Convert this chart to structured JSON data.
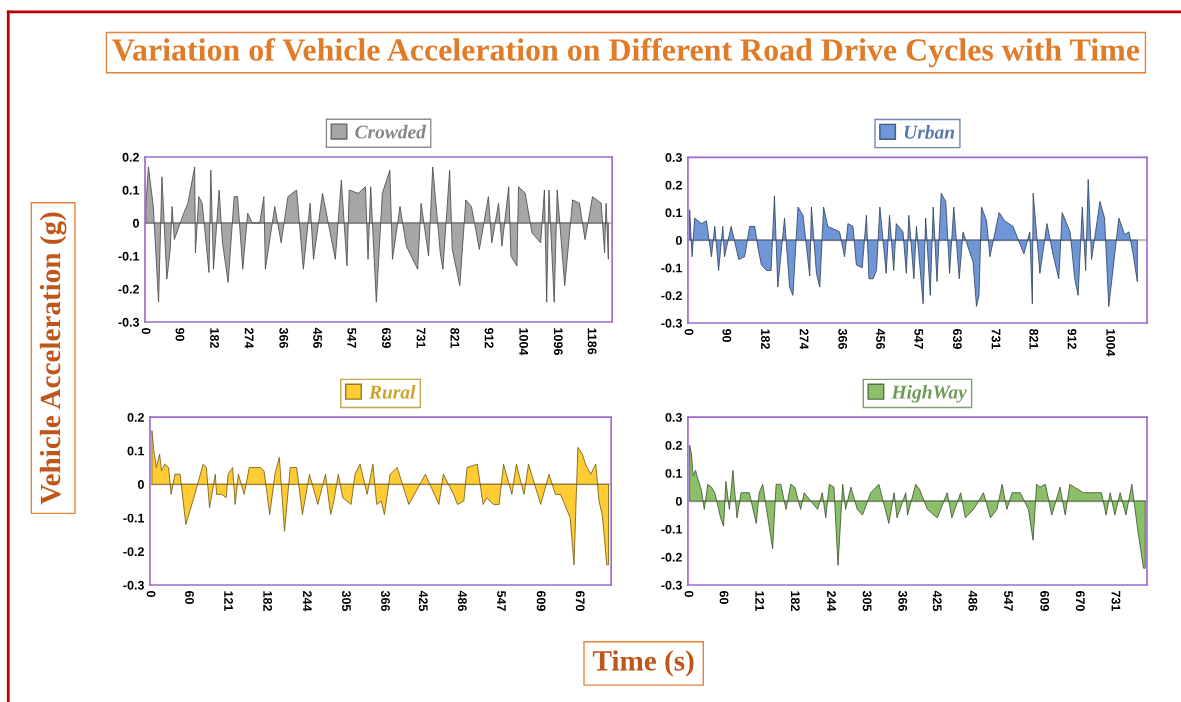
{
  "chart_data": [
    {
      "type": "area",
      "title": "Variation of Vehicle Acceleration on Different Road Drive Cycles with Time",
      "xlabel": "Time (s)",
      "ylabel": "Vehicle Acceleration (g)",
      "legend": "top",
      "xlim": [
        0,
        1242
      ],
      "xticks": [
        0,
        90,
        182,
        274,
        366,
        456,
        547,
        639,
        731,
        821,
        912,
        1004,
        1096,
        1186
      ],
      "ylim": [
        -0.3,
        0.2
      ],
      "yticks": [
        -0.3,
        -0.2,
        -0.1,
        0,
        0.1,
        0.2
      ],
      "series": [
        {
          "name": "Crowded",
          "color": "#a6a6a6",
          "x": [
            2,
            9,
            22,
            36,
            45,
            58,
            67,
            72,
            78,
            103,
            114,
            132,
            134,
            143,
            152,
            170,
            175,
            182,
            197,
            206,
            221,
            237,
            246,
            260,
            273,
            285,
            305,
            316,
            320,
            345,
            362,
            380,
            403,
            421,
            439,
            448,
            472,
            506,
            522,
            537,
            543,
            567,
            586,
            593,
            600,
            615,
            631,
            651,
            658,
            678,
            695,
            725,
            734,
            754,
            765,
            785,
            792,
            810,
            817,
            837,
            853,
            868,
            889,
            913,
            922,
            940,
            949,
            967,
            973,
            989,
            993,
            1011,
            1029,
            1052,
            1062,
            1068,
            1074,
            1088,
            1096,
            1116,
            1137,
            1155,
            1170,
            1190,
            1213,
            1222,
            1226,
            1232
          ],
          "values": [
            0.05,
            0.17,
            0.05,
            -0.24,
            0.14,
            -0.17,
            -0.08,
            0.05,
            -0.05,
            0.03,
            0.06,
            0.17,
            -0.09,
            0.08,
            0.06,
            -0.15,
            0.16,
            -0.14,
            0.1,
            -0.06,
            -0.18,
            0.08,
            0.08,
            -0.14,
            0.03,
            0,
            0,
            0.08,
            -0.14,
            0.05,
            -0.06,
            0.08,
            0.1,
            -0.14,
            0.06,
            -0.11,
            0.09,
            -0.11,
            0.13,
            -0.13,
            0.1,
            0.09,
            0.11,
            -0.11,
            0.11,
            -0.24,
            0.09,
            0.16,
            -0.11,
            0.05,
            -0.07,
            -0.14,
            0.06,
            -0.1,
            0.17,
            -0.09,
            -0.14,
            0.16,
            -0.08,
            -0.19,
            0.07,
            0.05,
            -0.08,
            0.08,
            -0.06,
            0.06,
            -0.07,
            0.11,
            -0.1,
            -0.13,
            0.11,
            0.09,
            -0.03,
            -0.06,
            0.1,
            -0.24,
            0.1,
            -0.24,
            0.1,
            -0.19,
            0.07,
            0.06,
            -0.05,
            0.08,
            0.06,
            -0.09,
            0.06,
            -0.11
          ]
        }
      ]
    },
    {
      "type": "area",
      "legend": "top",
      "xlim": [
        0,
        1093
      ],
      "xticks": [
        0,
        90,
        182,
        274,
        366,
        456,
        547,
        639,
        731,
        821,
        912,
        1004
      ],
      "ylim": [
        -0.3,
        0.3
      ],
      "yticks": [
        -0.3,
        -0.2,
        -0.1,
        0,
        0.1,
        0.2,
        0.3
      ],
      "series": [
        {
          "name": "Urban",
          "color": "#6f96d6",
          "x": [
            4,
            10,
            16,
            32,
            44,
            56,
            64,
            73,
            83,
            87,
            103,
            121,
            135,
            147,
            159,
            167,
            175,
            187,
            198,
            206,
            214,
            230,
            242,
            250,
            262,
            274,
            290,
            294,
            306,
            314,
            323,
            333,
            361,
            373,
            381,
            393,
            401,
            415,
            425,
            431,
            441,
            449,
            457,
            472,
            480,
            490,
            496,
            512,
            520,
            526,
            538,
            544,
            560,
            566,
            577,
            584,
            593,
            603,
            614,
            623,
            633,
            646,
            655,
            679,
            687,
            693,
            699,
            711,
            719,
            741,
            754,
            774,
            800,
            814,
            820,
            822,
            838,
            855,
            869,
            883,
            891,
            910,
            921,
            929,
            939,
            947,
            953,
            961,
            981,
            992,
            1002,
            1026,
            1040,
            1050,
            1060,
            1070
          ],
          "values": [
            0.11,
            -0.06,
            0.08,
            0.06,
            0.07,
            -0.06,
            0.05,
            -0.11,
            0.05,
            -0.06,
            0.05,
            -0.07,
            -0.06,
            0.05,
            0.05,
            -0.03,
            -0.09,
            -0.11,
            -0.11,
            0.16,
            -0.17,
            0.08,
            -0.17,
            -0.2,
            0.12,
            0.09,
            -0.13,
            0.12,
            -0.12,
            -0.17,
            0.12,
            0.05,
            0.03,
            -0.06,
            0.06,
            0.05,
            -0.09,
            -0.1,
            0.09,
            -0.14,
            -0.14,
            -0.11,
            0.12,
            -0.12,
            0.09,
            -0.11,
            0.06,
            0.03,
            -0.12,
            0.09,
            -0.14,
            0.05,
            -0.23,
            0.08,
            -0.2,
            0.12,
            -0.15,
            0.17,
            0.14,
            -0.12,
            0.12,
            -0.14,
            0.03,
            -0.08,
            -0.24,
            -0.2,
            0.12,
            0.07,
            -0.06,
            0.1,
            0.07,
            0.05,
            -0.05,
            0.03,
            -0.23,
            0.17,
            -0.12,
            0.06,
            -0.05,
            -0.14,
            0.1,
            0.03,
            -0.14,
            -0.2,
            0.12,
            -0.11,
            0.22,
            -0.07,
            0.14,
            0.08,
            -0.24,
            0.08,
            0.02,
            0.03,
            -0.05,
            -0.15
          ]
        }
      ]
    },
    {
      "type": "area",
      "legend": "top",
      "xlim": [
        0,
        720
      ],
      "xticks": [
        0,
        60,
        121,
        182,
        244,
        305,
        366,
        425,
        486,
        547,
        609,
        670
      ],
      "ylim": [
        -0.3,
        0.2
      ],
      "yticks": [
        -0.3,
        -0.2,
        -0.1,
        0,
        0.1,
        0.2
      ],
      "series": [
        {
          "name": "Rural",
          "color": "#ffcc33",
          "x": [
            3,
            6,
            10,
            15,
            18,
            23,
            29,
            33,
            39,
            47,
            56,
            70,
            83,
            88,
            93,
            102,
            104,
            112,
            119,
            122,
            129,
            133,
            138,
            147,
            155,
            164,
            172,
            178,
            187,
            195,
            202,
            210,
            219,
            229,
            238,
            249,
            262,
            274,
            282,
            287,
            294,
            301,
            314,
            320,
            328,
            339,
            348,
            354,
            361,
            366,
            375,
            386,
            404,
            430,
            451,
            458,
            474,
            480,
            490,
            495,
            511,
            520,
            526,
            536,
            545,
            552,
            565,
            572,
            584,
            591,
            610,
            623,
            633,
            641,
            656,
            662,
            668,
            675,
            680,
            688,
            696,
            701,
            706,
            710,
            713,
            716
          ],
          "values": [
            0.16,
            0.1,
            0.05,
            0.09,
            0.04,
            0.06,
            0.05,
            -0.03,
            0.03,
            0.03,
            -0.12,
            -0.03,
            0.06,
            0.05,
            -0.07,
            0.03,
            -0.03,
            -0.03,
            -0.04,
            0.03,
            0.05,
            -0.06,
            0.03,
            -0.03,
            0.05,
            0.05,
            0.05,
            0.04,
            -0.09,
            0.03,
            0.08,
            -0.14,
            0.05,
            0.05,
            -0.09,
            0.03,
            -0.06,
            0.03,
            -0.09,
            -0.05,
            0.03,
            -0.04,
            -0.06,
            0.03,
            0.06,
            -0.03,
            0.06,
            -0.06,
            -0.05,
            -0.09,
            0.03,
            0.05,
            -0.06,
            0.03,
            -0.06,
            0.03,
            -0.03,
            -0.06,
            -0.05,
            0.05,
            0.06,
            -0.06,
            -0.04,
            -0.06,
            -0.06,
            0.06,
            -0.03,
            0.06,
            -0.03,
            0.06,
            -0.06,
            0.03,
            -0.03,
            -0.03,
            -0.1,
            -0.24,
            0.11,
            0.09,
            0.06,
            0.03,
            0.06,
            -0.05,
            -0.09,
            -0.17,
            -0.24,
            -0.24
          ]
        }
      ]
    },
    {
      "type": "area",
      "legend": "top",
      "xlim": [
        0,
        786
      ],
      "xticks": [
        0,
        60,
        121,
        182,
        244,
        305,
        366,
        425,
        486,
        547,
        609,
        670,
        731
      ],
      "ylim": [
        -0.3,
        0.3
      ],
      "yticks": [
        -0.3,
        -0.2,
        -0.1,
        0,
        0.1,
        0.2,
        0.3
      ],
      "series": [
        {
          "name": "HighWay",
          "color": "#8cbf6a",
          "x": [
            3,
            6,
            9,
            13,
            17,
            23,
            28,
            34,
            40,
            46,
            56,
            61,
            65,
            71,
            77,
            84,
            91,
            105,
            117,
            122,
            128,
            145,
            151,
            159,
            168,
            176,
            183,
            193,
            199,
            222,
            230,
            236,
            242,
            250,
            257,
            265,
            270,
            279,
            290,
            299,
            313,
            327,
            344,
            353,
            358,
            373,
            376,
            390,
            397,
            410,
            427,
            444,
            452,
            467,
            475,
            489,
            506,
            518,
            529,
            538,
            546,
            555,
            569,
            583,
            591,
            597,
            603,
            612,
            623,
            637,
            646,
            654,
            677,
            694,
            708,
            716,
            723,
            731,
            740,
            750,
            760,
            770,
            775,
            780,
            783
          ],
          "values": [
            0.2,
            0.17,
            0.09,
            0.11,
            0.08,
            0.04,
            -0.03,
            0.06,
            0.05,
            0.03,
            -0.06,
            -0.09,
            0.07,
            -0.03,
            0.11,
            -0.06,
            0.03,
            0.03,
            -0.08,
            0.03,
            0.06,
            -0.17,
            0.06,
            0.06,
            -0.03,
            0.06,
            0.05,
            -0.03,
            0.03,
            -0.03,
            0.03,
            -0.06,
            0.06,
            0.05,
            -0.23,
            0.06,
            -0.03,
            0.05,
            -0.03,
            -0.05,
            0.03,
            0.06,
            -0.08,
            0.03,
            -0.06,
            0.03,
            -0.05,
            0.06,
            0.04,
            -0.03,
            -0.06,
            0.03,
            -0.06,
            0.03,
            -0.06,
            -0.03,
            0.03,
            -0.06,
            -0.03,
            0.06,
            -0.03,
            0.03,
            0.03,
            -0.03,
            -0.14,
            0.06,
            0.05,
            0.06,
            -0.05,
            0.05,
            -0.05,
            0.06,
            0.03,
            0.03,
            0.03,
            -0.05,
            0.03,
            -0.05,
            0.03,
            -0.05,
            0.06,
            -0.1,
            -0.17,
            -0.24,
            -0.24
          ]
        }
      ]
    }
  ]
}
